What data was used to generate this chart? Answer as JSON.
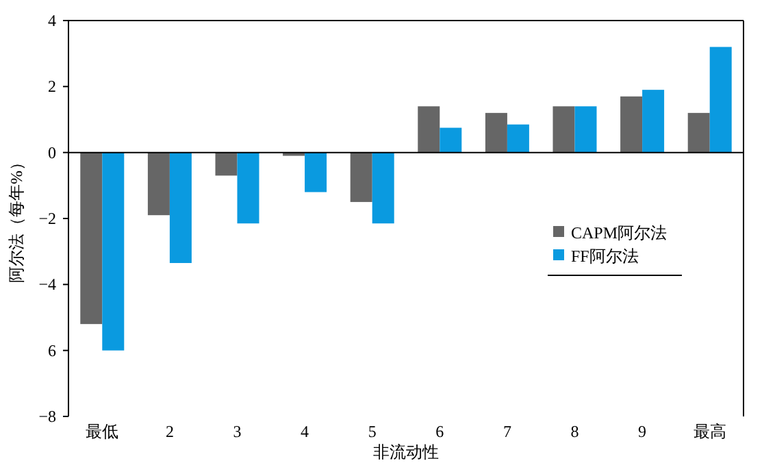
{
  "chart_data": {
    "type": "bar",
    "xlabel": "非流动性",
    "ylabel": "阿尔法（每年%）",
    "categories": [
      "最低",
      "2",
      "3",
      "4",
      "5",
      "6",
      "7",
      "8",
      "9",
      "最高"
    ],
    "series": [
      {
        "name": "CAPM阿尔法",
        "color": "#666666",
        "values": [
          -5.2,
          -1.9,
          -0.7,
          -0.1,
          -1.5,
          1.4,
          1.2,
          1.4,
          1.7,
          1.2
        ]
      },
      {
        "name": "FF阿尔法",
        "color": "#0a9ae0",
        "values": [
          -6.0,
          -3.35,
          -2.15,
          -1.2,
          -2.15,
          0.75,
          0.85,
          1.4,
          1.9,
          3.2
        ]
      }
    ],
    "ylim": [
      -8,
      4
    ],
    "yticks": [
      4,
      2,
      0,
      {
        "value": -2,
        "label": "−2"
      },
      {
        "value": -4,
        "label": "−4"
      },
      {
        "value": -6,
        "label": "6"
      },
      {
        "value": -8,
        "label": "−8"
      }
    ],
    "ref_lines": [
      {
        "axis": "y",
        "value": 0,
        "color": "#000000"
      }
    ],
    "grid": false,
    "legend": "right"
  }
}
